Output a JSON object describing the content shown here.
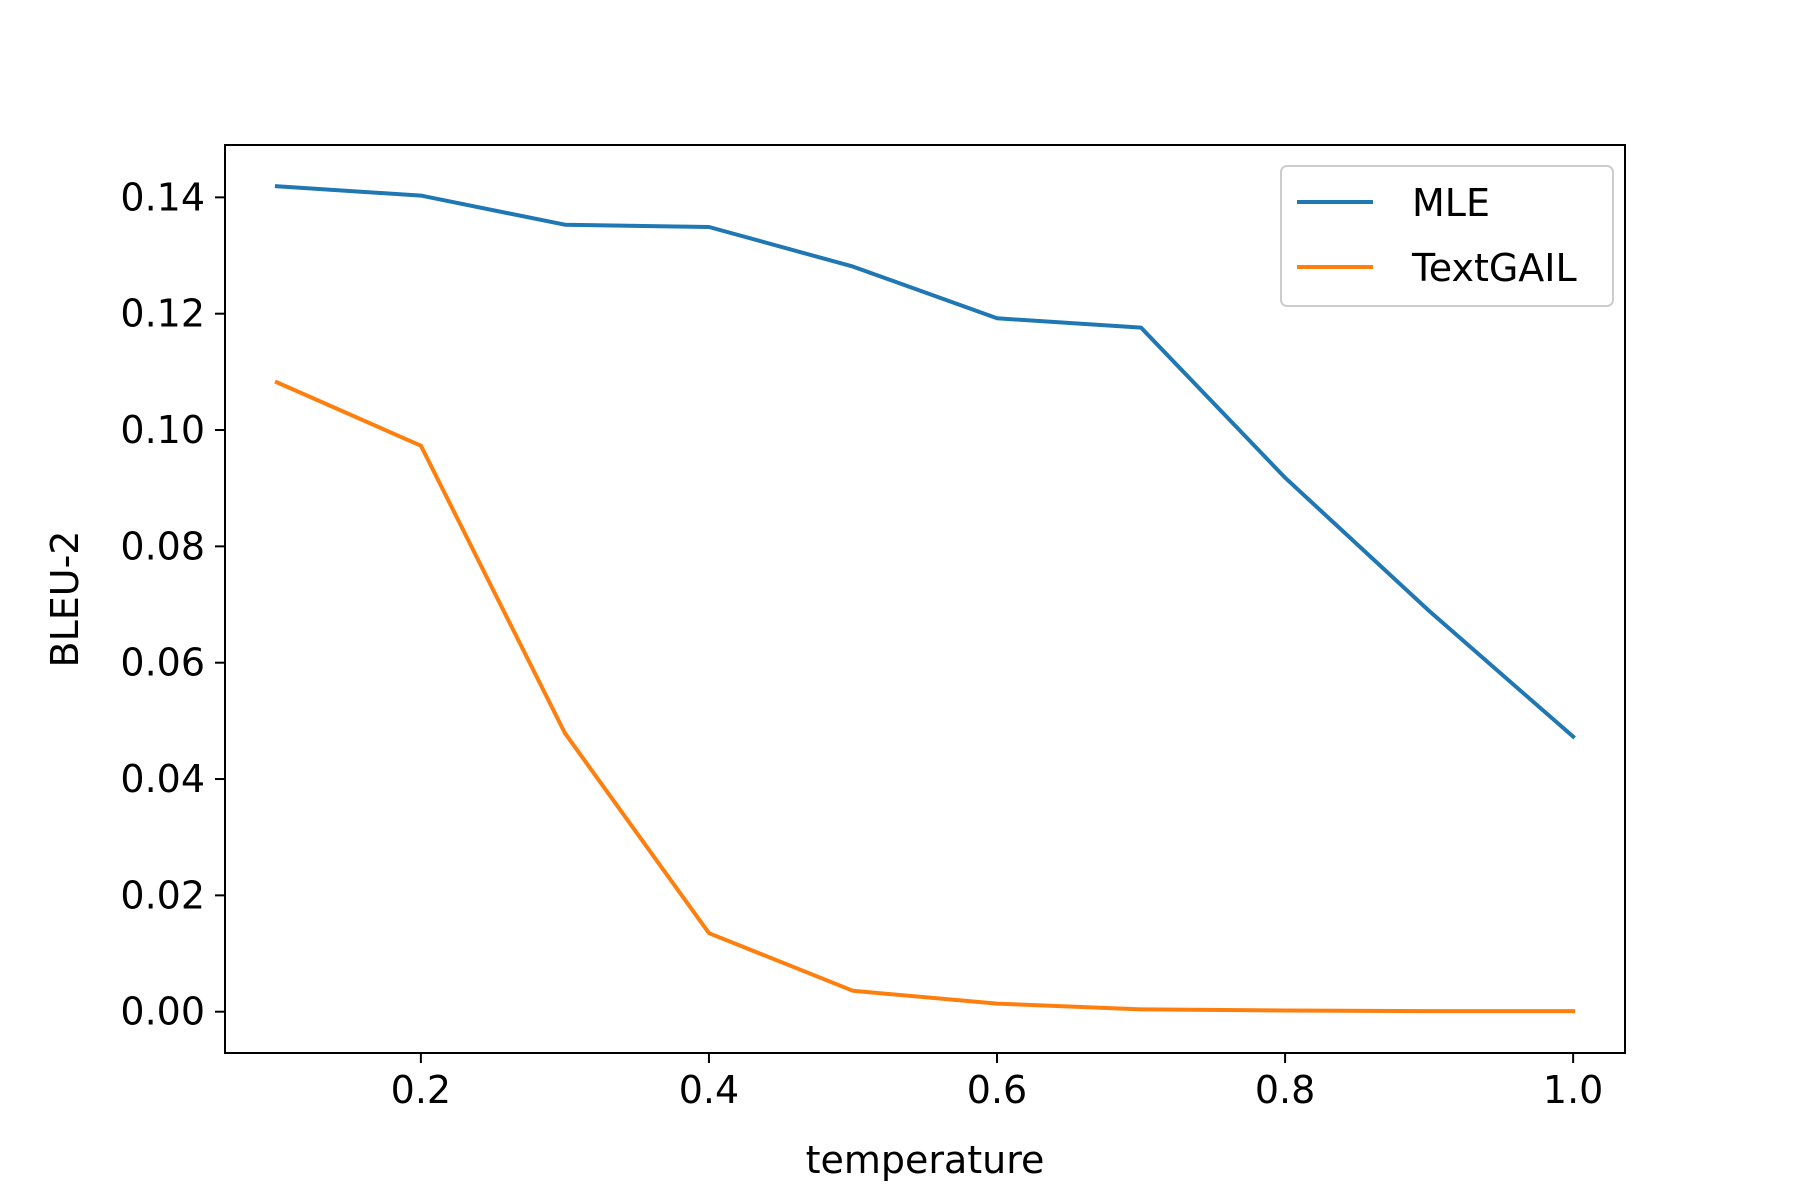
{
  "chart_data": {
    "type": "line",
    "title": "",
    "xlabel": "temperature",
    "ylabel": "BLEU-2",
    "xlim": [
      0.064,
      1.036
    ],
    "ylim": [
      -0.0071,
      0.149
    ],
    "xticks": [
      0.2,
      0.4,
      0.6,
      0.8,
      1.0
    ],
    "xtick_labels": [
      "0.2",
      "0.4",
      "0.6",
      "0.8",
      "1.0"
    ],
    "yticks": [
      0.0,
      0.02,
      0.04,
      0.06,
      0.08,
      0.1,
      0.12,
      0.14
    ],
    "ytick_labels": [
      "0.00",
      "0.02",
      "0.04",
      "0.06",
      "0.08",
      "0.10",
      "0.12",
      "0.14"
    ],
    "grid": false,
    "legend_position": "top-right",
    "x": [
      0.1,
      0.2,
      0.3,
      0.4,
      0.5,
      0.6,
      0.7,
      0.8,
      0.9,
      1.0
    ],
    "series": [
      {
        "name": "MLE",
        "color": "#1f77b4",
        "values": [
          0.1419,
          0.1403,
          0.1353,
          0.1349,
          0.1281,
          0.1192,
          0.1176,
          0.0918,
          0.0689,
          0.0473
        ]
      },
      {
        "name": "TextGAIL",
        "color": "#ff7f0e",
        "values": [
          0.1082,
          0.0973,
          0.0479,
          0.0135,
          0.0036,
          0.0014,
          0.0004,
          0.0002,
          0.0001,
          0.0001
        ]
      }
    ]
  }
}
